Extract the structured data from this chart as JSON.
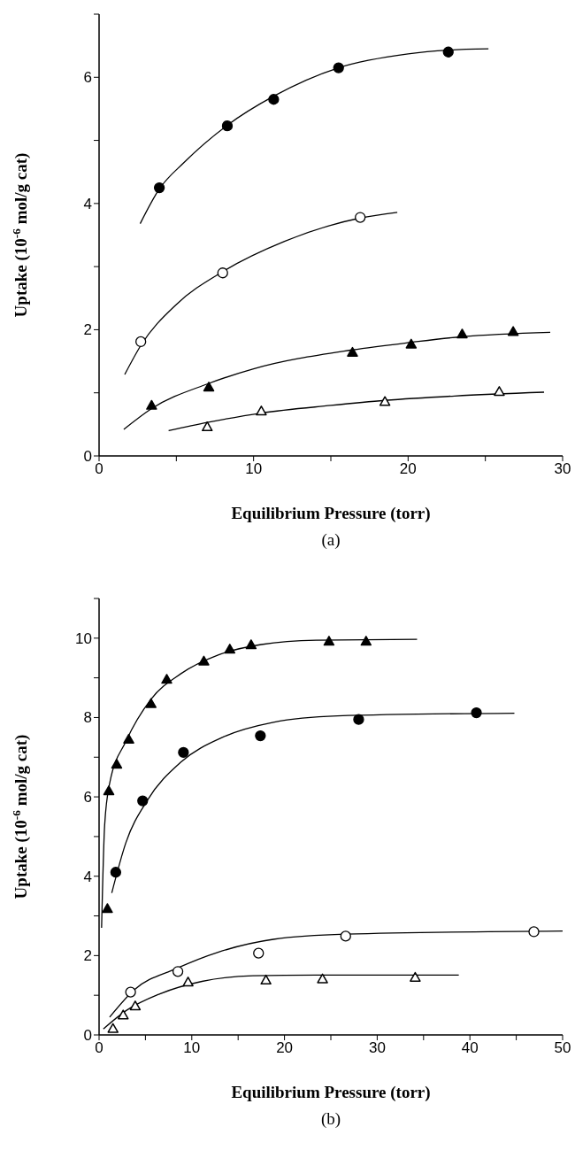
{
  "chart_data": [
    {
      "type": "scatter",
      "xlabel": "Equilibrium Pressure (torr)",
      "ylabel": "Uptake (10$^{-6}$ mol/g  cat)",
      "annotations": [
        "(a)"
      ],
      "xlim": [
        0,
        30
      ],
      "xticks": [
        0,
        {
          "value": 5,
          "label": null
        },
        10,
        {
          "value": 15,
          "label": null
        },
        20,
        {
          "value": 25,
          "label": null
        },
        30
      ],
      "ylim": [
        0,
        7
      ],
      "yticks": [
        0,
        {
          "value": 1,
          "label": null
        },
        2,
        {
          "value": 3,
          "label": null
        },
        4,
        {
          "value": 5,
          "label": null
        },
        6,
        {
          "value": 7,
          "label": null
        }
      ],
      "series": [
        {
          "marker": "circle",
          "color": "#000000",
          "x": [
            3.9,
            8.3,
            11.3,
            15.5,
            22.6
          ],
          "values": [
            4.25,
            5.23,
            5.65,
            6.15,
            6.4
          ]
        },
        {
          "marker": "circle",
          "color": "#ffffff",
          "x": [
            2.7,
            8.0,
            16.9
          ],
          "values": [
            1.81,
            2.9,
            3.78
          ]
        },
        {
          "marker": "triangle",
          "color": "#000000",
          "x": [
            3.4,
            7.1,
            16.4,
            20.2,
            23.5,
            26.8
          ],
          "values": [
            0.8,
            1.09,
            1.64,
            1.77,
            1.93,
            1.97
          ]
        },
        {
          "marker": "triangle",
          "color": "#ffffff",
          "x": [
            7.0,
            10.5,
            18.5,
            25.9
          ],
          "values": [
            0.46,
            0.71,
            0.86,
            1.02
          ]
        },
        {
          "type": "line",
          "marker": "none",
          "color": "#000000",
          "x": [
            2.66,
            3.9,
            5.5,
            8.3,
            11.3,
            15.5,
            20,
            22.6,
            25.2
          ],
          "values": [
            3.68,
            4.23,
            4.65,
            5.24,
            5.7,
            6.15,
            6.37,
            6.43,
            6.45
          ]
        },
        {
          "type": "line",
          "marker": "none",
          "color": "#000000",
          "x": [
            1.66,
            2.7,
            5,
            8,
            12,
            16.9,
            19.3
          ],
          "values": [
            1.29,
            1.75,
            2.4,
            2.92,
            3.4,
            3.77,
            3.86
          ]
        },
        {
          "type": "line",
          "marker": "none",
          "color": "#000000",
          "x": [
            1.6,
            3.4,
            7,
            10,
            16.4,
            20.2,
            23.5,
            29.2
          ],
          "values": [
            0.42,
            0.75,
            1.14,
            1.38,
            1.68,
            1.8,
            1.89,
            1.96
          ]
        },
        {
          "type": "line",
          "marker": "none",
          "color": "#000000",
          "x": [
            4.5,
            7,
            10.5,
            15,
            18.5,
            23,
            28.8
          ],
          "values": [
            0.4,
            0.53,
            0.68,
            0.8,
            0.88,
            0.95,
            1.01
          ]
        }
      ]
    },
    {
      "type": "scatter",
      "xlabel": "Equilibrium Pressure (torr)",
      "ylabel": "Uptake (10$^{-6}$ mol/g  cat)",
      "annotations": [
        "(b)"
      ],
      "xlim": [
        0,
        50
      ],
      "xticks": [
        0,
        {
          "value": 5,
          "label": null
        },
        10,
        {
          "value": 15,
          "label": null
        },
        20,
        {
          "value": 25,
          "label": null
        },
        30,
        {
          "value": 35,
          "label": null
        },
        40,
        {
          "value": 45,
          "label": null
        },
        50
      ],
      "ylim": [
        0,
        11
      ],
      "yticks": [
        0,
        {
          "value": 1,
          "label": null
        },
        2,
        {
          "value": 3,
          "label": null
        },
        4,
        {
          "value": 5,
          "label": null
        },
        6,
        {
          "value": 7,
          "label": null
        },
        8,
        {
          "value": 9,
          "label": null
        },
        10,
        {
          "value": 11,
          "label": null
        }
      ],
      "series": [
        {
          "marker": "triangle",
          "color": "#000000",
          "x": [
            0.9,
            1.05,
            1.9,
            3.2,
            5.6,
            7.3,
            11.3,
            14.1,
            16.4,
            24.8,
            28.8
          ],
          "values": [
            3.18,
            6.15,
            6.82,
            7.45,
            8.35,
            8.96,
            9.42,
            9.72,
            9.83,
            9.92,
            9.92
          ]
        },
        {
          "marker": "circle",
          "color": "#000000",
          "x": [
            1.8,
            4.7,
            9.1,
            17.4,
            28.0,
            40.7
          ],
          "values": [
            4.1,
            5.9,
            7.12,
            7.54,
            7.95,
            8.12
          ]
        },
        {
          "marker": "circle",
          "color": "#ffffff",
          "x": [
            3.4,
            8.5,
            17.2,
            26.6,
            46.9
          ],
          "values": [
            1.08,
            1.6,
            2.06,
            2.49,
            2.6
          ]
        },
        {
          "marker": "triangle",
          "color": "#ffffff",
          "x": [
            1.5,
            2.6,
            3.9,
            9.6,
            18.0,
            24.1,
            34.1
          ],
          "values": [
            0.16,
            0.5,
            0.73,
            1.33,
            1.38,
            1.41,
            1.45
          ]
        },
        {
          "type": "line",
          "marker": "none",
          "color": "#000000",
          "x": [
            0.27,
            0.6,
            1.14,
            2.9,
            5.6,
            8.8,
            12.9,
            17.5,
            23.4,
            34.3
          ],
          "values": [
            2.7,
            5.28,
            6.34,
            7.4,
            8.46,
            9.1,
            9.58,
            9.84,
            9.95,
            9.97
          ]
        },
        {
          "type": "line",
          "marker": "none",
          "color": "#000000",
          "x": [
            1.37,
            2.9,
            5.2,
            8.8,
            13.4,
            18.8,
            25.7,
            44.8
          ],
          "values": [
            3.58,
            4.85,
            5.91,
            6.87,
            7.51,
            7.88,
            8.04,
            8.11
          ]
        },
        {
          "type": "line",
          "marker": "none",
          "color": "#000000",
          "x": [
            1.14,
            3.8,
            8.3,
            12.9,
            18.8,
            26.6,
            50
          ],
          "values": [
            0.45,
            1.14,
            1.67,
            2.09,
            2.41,
            2.54,
            2.62
          ]
        },
        {
          "type": "line",
          "marker": "none",
          "color": "#000000",
          "x": [
            0.46,
            2.9,
            6.5,
            11.1,
            16.6,
            23.4,
            38.8
          ],
          "values": [
            0.15,
            0.61,
            1.03,
            1.35,
            1.49,
            1.51,
            1.51
          ]
        }
      ]
    }
  ]
}
